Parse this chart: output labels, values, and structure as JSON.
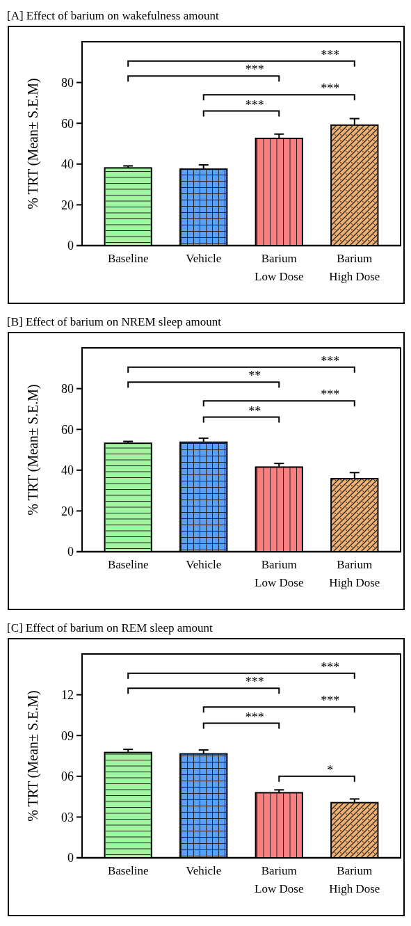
{
  "chart_data": [
    {
      "type": "bar",
      "title": "[A] Effect of barium on wakefulness amount",
      "ylabel": "% TRT (Mean± S.E.M)",
      "categories": [
        "Baseline",
        "Vehicle",
        "Barium Low Dose",
        "Barium High Dose"
      ],
      "values": [
        38.1,
        37.5,
        52.6,
        59.1
      ],
      "errors": [
        1.0,
        2.1,
        2.1,
        3.2
      ],
      "colors": [
        "#a0f5a0",
        "#5aa0f5",
        "#f88080",
        "#f0b070"
      ],
      "ylim": [
        0,
        100
      ],
      "yticks": [
        0,
        20,
        40,
        60,
        80
      ],
      "grid": false,
      "annotations": [
        "***",
        "***",
        "***",
        "***"
      ]
    },
    {
      "type": "bar",
      "title": "[B] Effect of barium on NREM sleep amount",
      "ylabel": "% TRT (Mean± S.E.M)",
      "categories": [
        "Baseline",
        "Vehicle",
        "Barium Low Dose",
        "Barium High Dose"
      ],
      "values": [
        53.2,
        53.7,
        41.5,
        35.8
      ],
      "errors": [
        0.9,
        2.0,
        1.8,
        3.0
      ],
      "colors": [
        "#a0f5a0",
        "#5aa0f5",
        "#f88080",
        "#f0b070"
      ],
      "ylim": [
        0,
        100
      ],
      "yticks": [
        0,
        20,
        40,
        60,
        80
      ],
      "grid": false,
      "annotations": [
        "***",
        "**",
        "***",
        "**"
      ]
    },
    {
      "type": "bar",
      "title": "[C] Effect of barium on REM sleep amount",
      "ylabel": "% TRT (Mean± S.E.M)",
      "categories": [
        "Baseline",
        "Vehicle",
        "Barium Low Dose",
        "Barium High Dose"
      ],
      "values": [
        7.75,
        7.65,
        4.79,
        4.06
      ],
      "errors": [
        0.23,
        0.29,
        0.21,
        0.27
      ],
      "colors": [
        "#a0f5a0",
        "#5aa0f5",
        "#f88080",
        "#f0b070"
      ],
      "ylim": [
        0,
        15
      ],
      "yticks": [
        0,
        {
          "value": 3,
          "label": "03"
        },
        {
          "value": 6,
          "label": "06"
        },
        {
          "value": 9,
          "label": "09"
        },
        12
      ],
      "grid": false,
      "annotations": [
        "***",
        "***",
        "***",
        "***",
        "*"
      ]
    }
  ]
}
